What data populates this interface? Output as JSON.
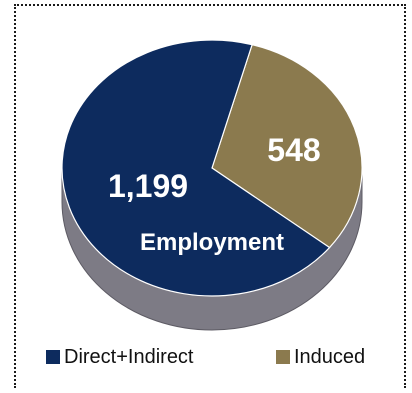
{
  "chart_data": {
    "type": "pie",
    "title": "",
    "center_label": "Employment",
    "slices": [
      {
        "name": "Direct+Indirect",
        "value": 1199,
        "label": "1,199",
        "color": "#0d2b5e",
        "side_color": "#7d7b85"
      },
      {
        "name": "Induced",
        "value": 548,
        "label": "548",
        "color": "#8b7a4e",
        "side_color": "#7d7b85"
      }
    ],
    "legend_position": "bottom"
  },
  "legend": {
    "items": [
      {
        "label": "Direct+Indirect",
        "color": "#0d2b5e"
      },
      {
        "label": "Induced",
        "color": "#8b7a4e"
      }
    ]
  }
}
